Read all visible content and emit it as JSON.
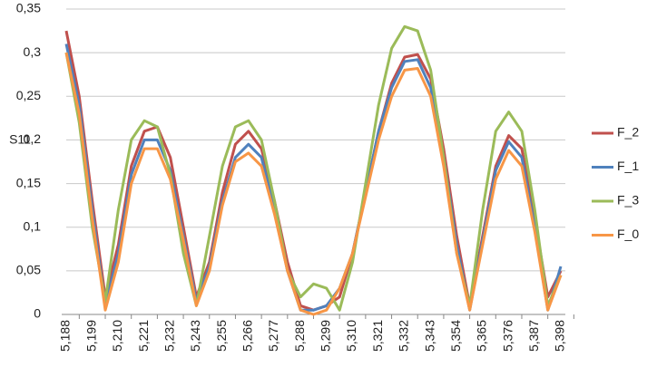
{
  "chart_data": {
    "type": "line",
    "y_label": "S11",
    "categories": [
      "5,188",
      null,
      "5,199",
      null,
      "5,210",
      null,
      "5,221",
      null,
      "5,232",
      null,
      "5,243",
      null,
      "5,255",
      null,
      "5,266",
      null,
      "5,277",
      null,
      "5,288",
      null,
      "5,299",
      null,
      "5,310",
      null,
      "5,321",
      null,
      "5,332",
      null,
      "5,343",
      null,
      "5,354",
      null,
      "5,365",
      null,
      "5,376",
      null,
      "5,387",
      null,
      "5,398"
    ],
    "series": [
      {
        "name": "F_2",
        "color": "#c0504d",
        "values": [
          0.325,
          0.25,
          0.13,
          0.02,
          0.08,
          0.17,
          0.21,
          0.215,
          0.18,
          0.1,
          0.02,
          0.06,
          0.14,
          0.195,
          0.21,
          0.19,
          0.13,
          0.06,
          0.01,
          0.005,
          0.01,
          0.02,
          0.07,
          0.14,
          0.21,
          0.265,
          0.295,
          0.298,
          0.27,
          0.19,
          0.09,
          0.01,
          0.09,
          0.17,
          0.205,
          0.19,
          0.11,
          0.02,
          0.05
        ]
      },
      {
        "name": "F_1",
        "color": "#4f81bd",
        "values": [
          0.31,
          0.24,
          0.12,
          0.01,
          0.07,
          0.16,
          0.2,
          0.2,
          0.165,
          0.09,
          0.015,
          0.055,
          0.13,
          0.18,
          0.195,
          0.18,
          0.12,
          0.05,
          0.005,
          0.005,
          0.01,
          0.03,
          0.07,
          0.14,
          0.21,
          0.26,
          0.29,
          0.292,
          0.26,
          0.18,
          0.08,
          0.005,
          0.085,
          0.165,
          0.198,
          0.18,
          0.1,
          0.005,
          0.055
        ]
      },
      {
        "name": "F_3",
        "color": "#9bbb59",
        "values": [
          0.3,
          0.22,
          0.1,
          0.015,
          0.12,
          0.2,
          0.222,
          0.215,
          0.16,
          0.07,
          0.01,
          0.09,
          0.17,
          0.215,
          0.222,
          0.2,
          0.13,
          0.05,
          0.02,
          0.035,
          0.03,
          0.005,
          0.06,
          0.15,
          0.24,
          0.305,
          0.33,
          0.325,
          0.28,
          0.18,
          0.07,
          0.01,
          0.12,
          0.21,
          0.232,
          0.21,
          0.12,
          0.01,
          0.045
        ]
      },
      {
        "name": "F_0",
        "color": "#f79646",
        "values": [
          0.3,
          0.23,
          0.11,
          0.005,
          0.06,
          0.15,
          0.19,
          0.19,
          0.155,
          0.085,
          0.01,
          0.05,
          0.125,
          0.175,
          0.185,
          0.17,
          0.115,
          0.05,
          0.005,
          0,
          0.005,
          0.03,
          0.07,
          0.135,
          0.2,
          0.25,
          0.28,
          0.282,
          0.25,
          0.17,
          0.07,
          0.005,
          0.08,
          0.155,
          0.188,
          0.17,
          0.095,
          0.005,
          0.045
        ]
      }
    ],
    "ylim": [
      0,
      0.35
    ],
    "yticks": [
      {
        "value": 0,
        "label": "0"
      },
      {
        "value": 0.05,
        "label": "0,05"
      },
      {
        "value": 0.1,
        "label": "0,1"
      },
      {
        "value": 0.15,
        "label": "0,15"
      },
      {
        "value": 0.2,
        "label": "0,2"
      },
      {
        "value": 0.25,
        "label": "0,25"
      },
      {
        "value": 0.3,
        "label": "0,3"
      },
      {
        "value": 0.35,
        "label": "0,35"
      }
    ],
    "grid": true,
    "legend": "right"
  }
}
